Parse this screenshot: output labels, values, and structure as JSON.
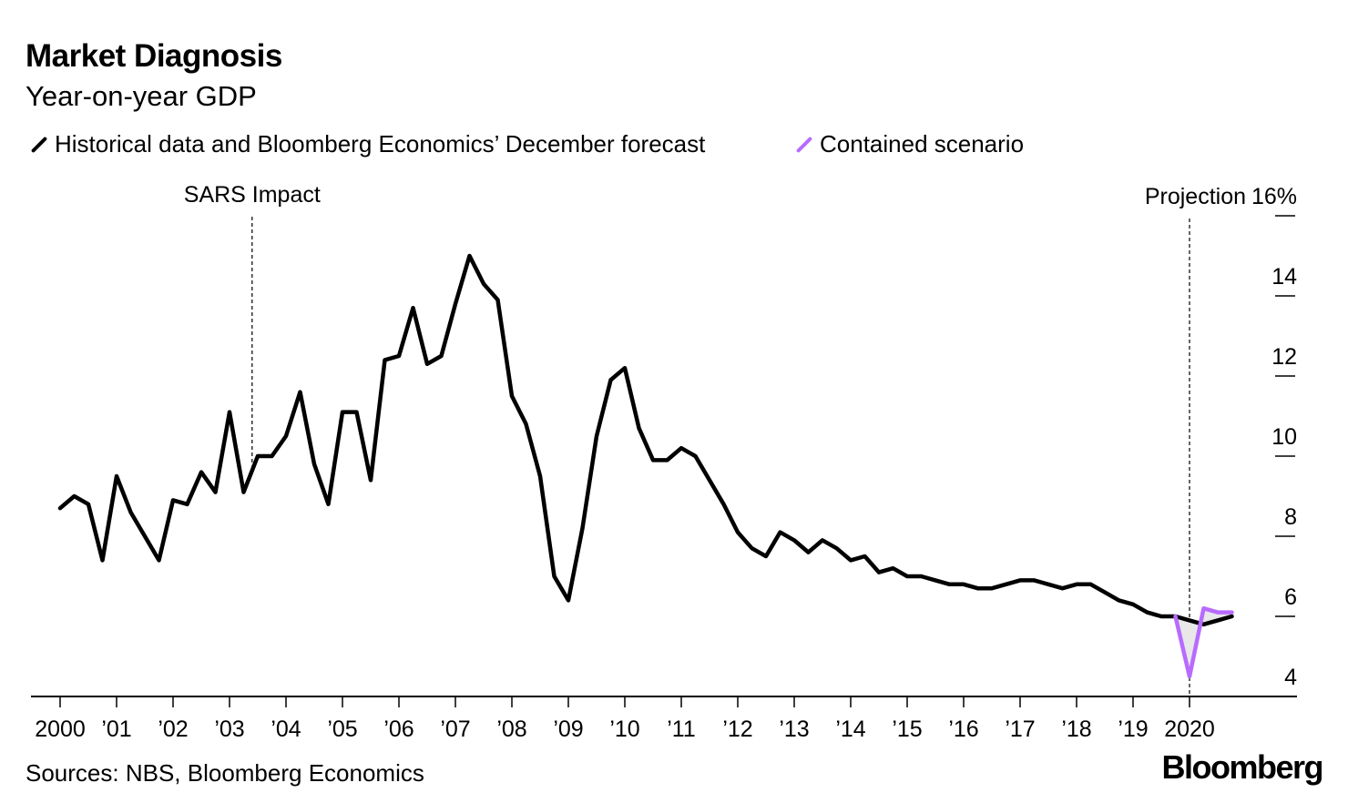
{
  "header": {
    "title": "Market Diagnosis",
    "subtitle": "Year-on-year GDP"
  },
  "legend": {
    "historical_label": "Historical data and Bloomberg Economics’ December forecast",
    "contained_label": "Contained scenario"
  },
  "annotations": {
    "sars": "SARS Impact",
    "projection": "Projection"
  },
  "footer": {
    "source": "Sources: NBS, Bloomberg Economics",
    "logo": "Bloomberg"
  },
  "colors": {
    "historical": "#000000",
    "contained": "#b86bff",
    "fill": "#e8e8e8"
  },
  "chart_data": {
    "type": "line",
    "title": "Market Diagnosis",
    "subtitle": "Year-on-year GDP",
    "xlabel": "",
    "ylabel": "",
    "ylim": [
      4,
      16
    ],
    "y_ticks": [
      4,
      6,
      8,
      10,
      12,
      14,
      16
    ],
    "y_tick_labels": [
      "4",
      "6",
      "8",
      "10",
      "12",
      "14",
      "16%"
    ],
    "x_tick_values": [
      2000,
      2001,
      2002,
      2003,
      2004,
      2005,
      2006,
      2007,
      2008,
      2009,
      2010,
      2011,
      2012,
      2013,
      2014,
      2015,
      2016,
      2017,
      2018,
      2019,
      2020
    ],
    "x_tick_labels": [
      "2000",
      "’01",
      "’02",
      "’03",
      "’04",
      "’05",
      "’06",
      "’07",
      "’08",
      "’09",
      "’10",
      "’11",
      "’12",
      "’13",
      "’14",
      "’15",
      "’16",
      "’17",
      "’18",
      "’19",
      "2020"
    ],
    "grid": false,
    "legend_position": "top-left",
    "annotations": [
      {
        "text": "SARS Impact",
        "x": 2003.4
      },
      {
        "text": "Projection",
        "x": 2020.0
      }
    ],
    "series": [
      {
        "name": "Historical data and Bloomberg Economics’ December forecast",
        "x": [
          2000.0,
          2000.25,
          2000.5,
          2000.75,
          2001.0,
          2001.25,
          2001.5,
          2001.75,
          2002.0,
          2002.25,
          2002.5,
          2002.75,
          2003.0,
          2003.25,
          2003.5,
          2003.75,
          2004.0,
          2004.25,
          2004.5,
          2004.75,
          2005.0,
          2005.25,
          2005.5,
          2005.75,
          2006.0,
          2006.25,
          2006.5,
          2006.75,
          2007.0,
          2007.25,
          2007.5,
          2007.75,
          2008.0,
          2008.25,
          2008.5,
          2008.75,
          2009.0,
          2009.25,
          2009.5,
          2009.75,
          2010.0,
          2010.25,
          2010.5,
          2010.75,
          2011.0,
          2011.25,
          2011.5,
          2011.75,
          2012.0,
          2012.25,
          2012.5,
          2012.75,
          2013.0,
          2013.25,
          2013.5,
          2013.75,
          2014.0,
          2014.25,
          2014.5,
          2014.75,
          2015.0,
          2015.25,
          2015.5,
          2015.75,
          2016.0,
          2016.25,
          2016.5,
          2016.75,
          2017.0,
          2017.25,
          2017.5,
          2017.75,
          2018.0,
          2018.25,
          2018.5,
          2018.75,
          2019.0,
          2019.25,
          2019.5,
          2019.75,
          2020.0,
          2020.25,
          2020.5,
          2020.75
        ],
        "values": [
          8.7,
          9.0,
          8.8,
          7.4,
          9.5,
          8.6,
          8.0,
          7.4,
          8.9,
          8.8,
          9.6,
          9.1,
          11.1,
          9.1,
          10.0,
          10.0,
          10.5,
          11.6,
          9.8,
          8.8,
          11.1,
          11.1,
          9.4,
          12.4,
          12.5,
          13.7,
          12.3,
          12.5,
          13.8,
          15.0,
          14.3,
          13.9,
          11.5,
          10.8,
          9.5,
          7.0,
          6.4,
          8.2,
          10.5,
          11.9,
          12.2,
          10.7,
          9.9,
          9.9,
          10.2,
          10.0,
          9.4,
          8.8,
          8.1,
          7.7,
          7.5,
          8.1,
          7.9,
          7.6,
          7.9,
          7.7,
          7.4,
          7.5,
          7.1,
          7.2,
          7.0,
          7.0,
          6.9,
          6.8,
          6.8,
          6.7,
          6.7,
          6.8,
          6.9,
          6.9,
          6.8,
          6.7,
          6.8,
          6.8,
          6.6,
          6.4,
          6.3,
          6.1,
          6.0,
          6.0,
          5.9,
          5.8,
          5.9,
          6.0
        ]
      },
      {
        "name": "Contained scenario",
        "x": [
          2019.75,
          2020.0,
          2020.25,
          2020.5,
          2020.75
        ],
        "values": [
          6.0,
          4.5,
          6.2,
          6.1,
          6.1
        ]
      }
    ]
  }
}
